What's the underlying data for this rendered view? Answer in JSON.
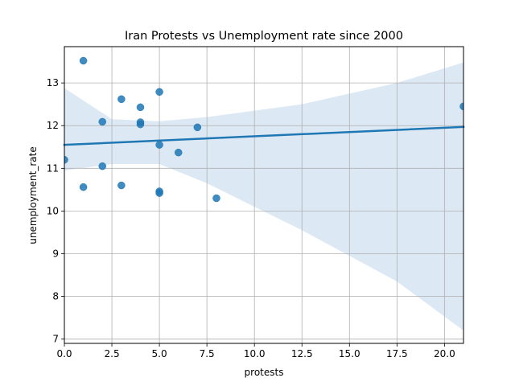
{
  "chart_data": {
    "type": "scatter",
    "title": "Iran Protests vs Unemployment rate since 2000",
    "xlabel": "protests",
    "ylabel": "unemployment_rate",
    "xlim": [
      0,
      21
    ],
    "ylim": [
      6.9,
      13.85
    ],
    "x_ticks": [
      "0.0",
      "2.5",
      "5.0",
      "7.5",
      "10.0",
      "12.5",
      "15.0",
      "17.5",
      "20.0"
    ],
    "x_tick_values": [
      0,
      2.5,
      5,
      7.5,
      10,
      12.5,
      15,
      17.5,
      20
    ],
    "y_ticks": [
      "7",
      "8",
      "9",
      "10",
      "11",
      "12",
      "13"
    ],
    "y_tick_values": [
      7,
      8,
      9,
      10,
      11,
      12,
      13
    ],
    "grid": true,
    "colors": {
      "points": "#1f77b4",
      "line": "#1f77b4",
      "band": "#c5d9ec"
    },
    "points": [
      {
        "x": 0,
        "y": 11.2
      },
      {
        "x": 1,
        "y": 13.52
      },
      {
        "x": 1,
        "y": 10.56
      },
      {
        "x": 2,
        "y": 12.09
      },
      {
        "x": 2,
        "y": 11.05
      },
      {
        "x": 3,
        "y": 12.62
      },
      {
        "x": 3,
        "y": 10.6
      },
      {
        "x": 4,
        "y": 12.43
      },
      {
        "x": 4,
        "y": 12.08
      },
      {
        "x": 4,
        "y": 12.03
      },
      {
        "x": 5,
        "y": 12.79
      },
      {
        "x": 5,
        "y": 11.55
      },
      {
        "x": 5,
        "y": 10.46
      },
      {
        "x": 5,
        "y": 10.42
      },
      {
        "x": 6,
        "y": 11.37
      },
      {
        "x": 7,
        "y": 11.96
      },
      {
        "x": 8,
        "y": 10.3
      },
      {
        "x": 21,
        "y": 12.45
      }
    ],
    "regression": {
      "x": [
        0,
        21
      ],
      "y": [
        11.55,
        11.97
      ]
    },
    "confidence_band": {
      "x": [
        0,
        2.5,
        5,
        7.5,
        10,
        12.5,
        15,
        17.5,
        21
      ],
      "upper": [
        12.88,
        12.15,
        12.1,
        12.2,
        12.35,
        12.5,
        12.75,
        13.0,
        13.48
      ],
      "lower": [
        10.95,
        11.1,
        11.1,
        10.65,
        10.1,
        9.55,
        8.95,
        8.35,
        7.2
      ]
    }
  }
}
